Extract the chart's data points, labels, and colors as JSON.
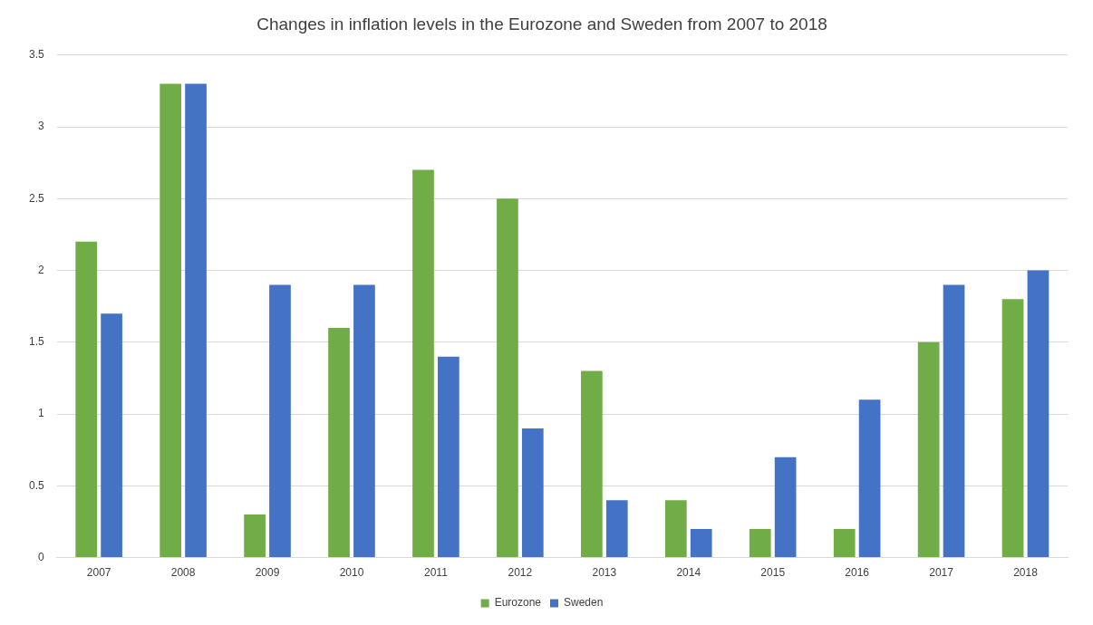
{
  "chart_data": {
    "type": "bar",
    "title": "Changes in inflation levels in the Eurozone and Sweden from 2007 to 2018",
    "categories": [
      "2007",
      "2008",
      "2009",
      "2010",
      "2011",
      "2012",
      "2013",
      "2014",
      "2015",
      "2016",
      "2017",
      "2018"
    ],
    "series": [
      {
        "name": "Eurozone",
        "color": "#70ad47",
        "values": [
          2.2,
          3.3,
          0.3,
          1.6,
          2.7,
          2.5,
          1.3,
          0.4,
          0.2,
          0.2,
          1.5,
          1.8
        ]
      },
      {
        "name": "Sweden",
        "color": "#4472c4",
        "values": [
          1.7,
          3.3,
          1.9,
          1.9,
          1.4,
          0.9,
          0.4,
          0.2,
          0.7,
          1.1,
          1.9,
          2.0
        ]
      }
    ],
    "ylim": [
      0,
      3.5
    ],
    "yticks": [
      0,
      0.5,
      1,
      1.5,
      2,
      2.5,
      3,
      3.5
    ],
    "grid": "y",
    "legend": "bottom"
  }
}
